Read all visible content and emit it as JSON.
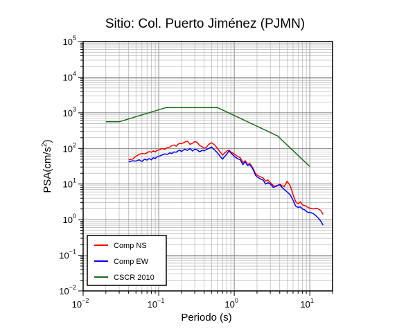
{
  "chart_data": {
    "type": "line",
    "title": "Sitio: Col. Puerto Jiménez (PJMN)",
    "xlabel": "Periodo (s)",
    "ylabel_main": "PSA(cm/s",
    "ylabel_sup": "2",
    "ylabel_tail": ")",
    "x_scale": "log",
    "y_scale": "log",
    "xlim": [
      0.01,
      20
    ],
    "ylim": [
      0.01,
      100000
    ],
    "grid": true,
    "legend_position": "bottom-left",
    "x_ticks": [
      {
        "value": 0.01,
        "base": "10",
        "exp": "−2"
      },
      {
        "value": 0.1,
        "base": "10",
        "exp": "−1"
      },
      {
        "value": 1,
        "base": "10",
        "exp": "0"
      },
      {
        "value": 10,
        "base": "10",
        "exp": "1"
      }
    ],
    "y_ticks": [
      {
        "value": 0.01,
        "base": "10",
        "exp": "−2"
      },
      {
        "value": 0.1,
        "base": "10",
        "exp": "−1"
      },
      {
        "value": 1,
        "base": "10",
        "exp": "0"
      },
      {
        "value": 10,
        "base": "10",
        "exp": "1"
      },
      {
        "value": 100,
        "base": "10",
        "exp": "2"
      },
      {
        "value": 1000,
        "base": "10",
        "exp": "3"
      },
      {
        "value": 10000,
        "base": "10",
        "exp": "4"
      },
      {
        "value": 100000,
        "base": "10",
        "exp": "5"
      }
    ],
    "series": [
      {
        "name": "Comp NS",
        "color": "#ff0000",
        "x": [
          0.04,
          0.045,
          0.05,
          0.055,
          0.06,
          0.065,
          0.07,
          0.075,
          0.08,
          0.085,
          0.09,
          0.095,
          0.1,
          0.11,
          0.12,
          0.13,
          0.14,
          0.15,
          0.16,
          0.17,
          0.18,
          0.19,
          0.2,
          0.22,
          0.24,
          0.26,
          0.28,
          0.3,
          0.32,
          0.35,
          0.38,
          0.4,
          0.43,
          0.46,
          0.5,
          0.55,
          0.6,
          0.65,
          0.7,
          0.75,
          0.8,
          0.85,
          0.9,
          1.0,
          1.1,
          1.2,
          1.3,
          1.4,
          1.5,
          1.6,
          1.7,
          1.8,
          1.9,
          2.0,
          2.2,
          2.4,
          2.6,
          2.8,
          3.0,
          3.3,
          3.6,
          4.0,
          4.3,
          4.6,
          5.0,
          5.5,
          6.0,
          6.5,
          7.0,
          7.5,
          8.0,
          8.5,
          9.0,
          9.5,
          10.0,
          11.0,
          12.0,
          13.0,
          14.0,
          15.0
        ],
        "y": [
          48,
          50,
          60,
          68,
          72,
          70,
          75,
          82,
          78,
          85,
          80,
          88,
          90,
          100,
          95,
          105,
          110,
          120,
          125,
          115,
          130,
          140,
          135,
          150,
          160,
          130,
          140,
          155,
          150,
          120,
          110,
          100,
          110,
          130,
          145,
          125,
          100,
          80,
          65,
          75,
          85,
          90,
          80,
          70,
          60,
          55,
          40,
          45,
          35,
          38,
          32,
          26,
          20,
          18,
          16,
          15,
          12,
          13,
          11,
          9,
          8.5,
          10,
          9,
          8.5,
          12,
          9,
          5,
          3.2,
          2.8,
          3.2,
          2.6,
          2.5,
          2.4,
          2.2,
          2.1,
          2.0,
          2.1,
          2.0,
          1.8,
          1.4
        ]
      },
      {
        "name": "Comp EW",
        "color": "#0000ff",
        "x": [
          0.04,
          0.045,
          0.05,
          0.055,
          0.06,
          0.065,
          0.07,
          0.075,
          0.08,
          0.085,
          0.09,
          0.095,
          0.1,
          0.11,
          0.12,
          0.13,
          0.14,
          0.15,
          0.16,
          0.17,
          0.18,
          0.19,
          0.2,
          0.22,
          0.24,
          0.26,
          0.28,
          0.3,
          0.32,
          0.35,
          0.38,
          0.4,
          0.43,
          0.46,
          0.5,
          0.55,
          0.6,
          0.65,
          0.7,
          0.75,
          0.8,
          0.85,
          0.9,
          1.0,
          1.1,
          1.2,
          1.3,
          1.4,
          1.5,
          1.6,
          1.7,
          1.8,
          1.9,
          2.0,
          2.2,
          2.4,
          2.6,
          2.8,
          3.0,
          3.3,
          3.6,
          4.0,
          4.3,
          4.6,
          5.0,
          5.5,
          6.0,
          6.5,
          7.0,
          7.5,
          8.0,
          8.5,
          9.0,
          9.5,
          10.0,
          11.0,
          12.0,
          13.0,
          14.0,
          15.0
        ],
        "y": [
          42,
          45,
          44,
          48,
          43,
          50,
          47,
          52,
          48,
          55,
          52,
          58,
          60,
          65,
          70,
          68,
          75,
          72,
          80,
          78,
          85,
          90,
          82,
          95,
          88,
          100,
          85,
          95,
          92,
          80,
          90,
          85,
          95,
          100,
          110,
          90,
          75,
          60,
          50,
          60,
          70,
          85,
          75,
          60,
          52,
          48,
          35,
          42,
          33,
          35,
          30,
          24,
          18,
          16,
          14,
          13,
          10,
          11,
          10,
          8,
          9,
          9.5,
          8,
          7,
          6,
          5,
          3.5,
          2.4,
          2.2,
          2.3,
          2.0,
          1.9,
          1.7,
          1.6,
          1.6,
          1.5,
          1.3,
          1.1,
          0.9,
          0.7
        ]
      },
      {
        "name": "CSCR 2010",
        "color": "#1a6b1a",
        "x": [
          0.02,
          0.03,
          0.125,
          0.6,
          3.75,
          10.0
        ],
        "y": [
          560,
          560,
          1400,
          1400,
          224,
          31
        ]
      }
    ]
  }
}
